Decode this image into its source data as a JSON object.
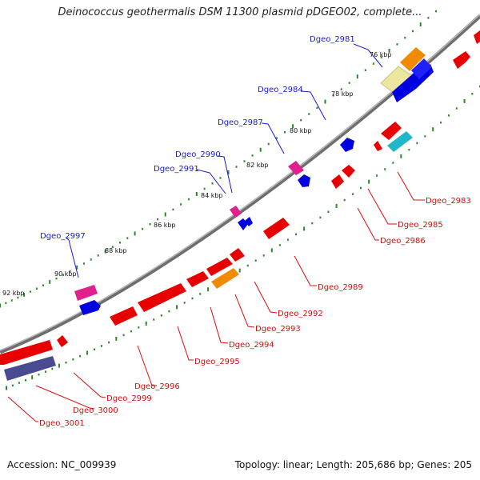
{
  "title": "Deinococcus geothermalis DSM 11300 plasmid pDGEO02, complete...",
  "footer": {
    "accession": "Accession: NC_009939",
    "topology": "Topology: linear; Length: 205,686 bp; Genes: 205"
  },
  "colors": {
    "backbone": "#808080",
    "tick_dots": "#2a8a2a",
    "label_top": "#1a1acc",
    "label_bottom": "#d01010",
    "gene_red": "#e80000",
    "gene_blue": "#0000e0",
    "gene_pink": "#e0208c",
    "gene_orange": "#f08a00",
    "gene_pale_yellow": "#ece6a0",
    "gene_cyan": "#20b8c8",
    "gene_slate": "#4a4a90"
  },
  "ticks": [
    {
      "label": "76 kbp"
    },
    {
      "label": "78 kbp"
    },
    {
      "label": "80 kbp"
    },
    {
      "label": "82 kbp"
    },
    {
      "label": "84 kbp"
    },
    {
      "label": "86 kbp"
    },
    {
      "label": "88 kbp"
    },
    {
      "label": "90 kbp"
    },
    {
      "label": "92 kbp"
    }
  ],
  "gene_labels_top": [
    "Dgeo_2981",
    "Dgeo_2984",
    "Dgeo_2987",
    "Dgeo_2990",
    "Dgeo_2991",
    "Dgeo_2997"
  ],
  "gene_labels_bottom": [
    "Dgeo_2983",
    "Dgeo_2985",
    "Dgeo_2986",
    "Dgeo_2989",
    "Dgeo_2992",
    "Dgeo_2993",
    "Dgeo_2994",
    "Dgeo_2995",
    "Dgeo_2996",
    "Dgeo_2999",
    "Dgeo_3000",
    "Dgeo_3001"
  ]
}
